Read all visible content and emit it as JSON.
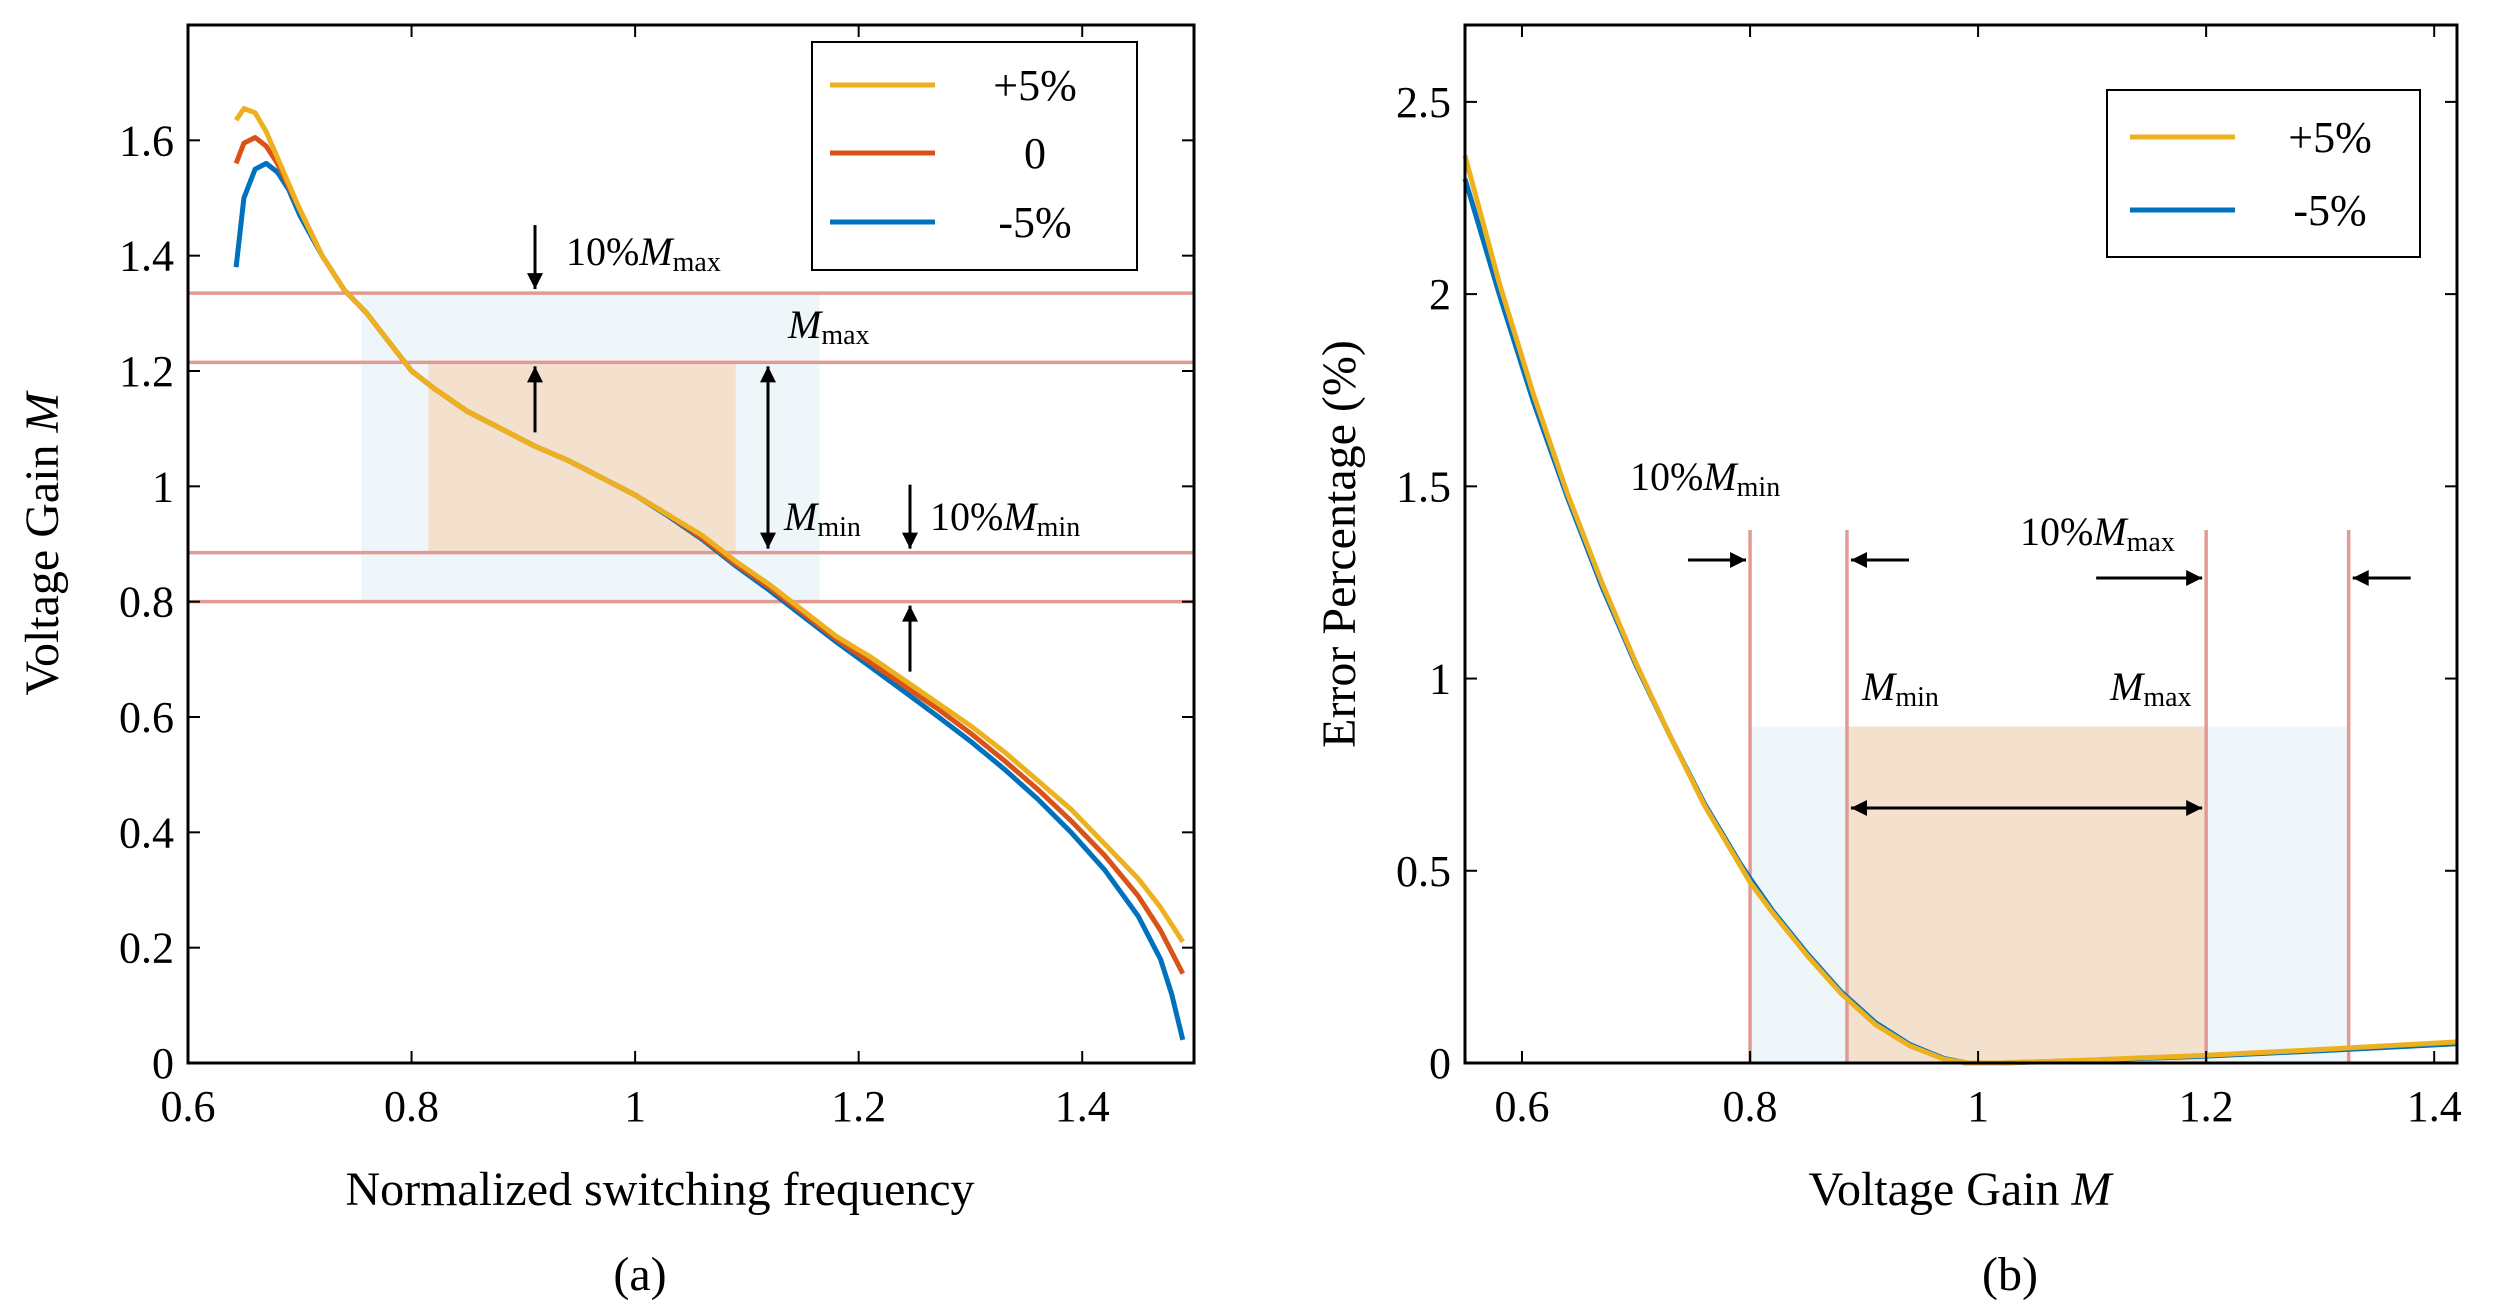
{
  "chart_data": [
    {
      "type": "line",
      "panel_label": "(a)",
      "xlabel": "Normalized switching frequency",
      "ylabel": "Voltage Gain M",
      "ylabel_main": "Voltage Gain ",
      "ylabel_italic": "M",
      "xlim": [
        0.6,
        1.5
      ],
      "ylim": [
        0,
        1.8
      ],
      "xticks": [
        0.6,
        0.8,
        1,
        1.2,
        1.4
      ],
      "xtick_labels": [
        "0.6",
        "0.8",
        "1",
        "1.2",
        "1.4"
      ],
      "yticks": [
        0,
        0.2,
        0.4,
        0.6,
        0.8,
        1,
        1.2,
        1.4,
        1.6
      ],
      "ytick_labels": [
        "0",
        "0.2",
        "0.4",
        "0.6",
        "0.8",
        "1",
        "1.2",
        "1.4",
        "1.6"
      ],
      "grid": false,
      "legend": "top-right",
      "series": [
        {
          "name": "+5%",
          "color": "#EDB120",
          "x": [
            0.643,
            0.65,
            0.66,
            0.67,
            0.68,
            0.7,
            0.72,
            0.74,
            0.76,
            0.78,
            0.8,
            0.82,
            0.85,
            0.88,
            0.91,
            0.94,
            0.97,
            1.0,
            1.03,
            1.06,
            1.09,
            1.12,
            1.15,
            1.18,
            1.21,
            1.24,
            1.27,
            1.3,
            1.33,
            1.36,
            1.39,
            1.42,
            1.45,
            1.47,
            1.49
          ],
          "y": [
            1.635,
            1.655,
            1.648,
            1.615,
            1.57,
            1.48,
            1.4,
            1.34,
            1.3,
            1.25,
            1.2,
            1.17,
            1.13,
            1.1,
            1.07,
            1.045,
            1.015,
            0.985,
            0.95,
            0.915,
            0.87,
            0.83,
            0.785,
            0.74,
            0.705,
            0.665,
            0.625,
            0.585,
            0.54,
            0.49,
            0.44,
            0.38,
            0.32,
            0.27,
            0.21
          ]
        },
        {
          "name": "0",
          "color": "#D95319",
          "x": [
            0.643,
            0.65,
            0.66,
            0.67,
            0.68,
            0.7,
            0.72,
            0.74,
            0.76,
            0.78,
            0.8,
            0.82,
            0.85,
            0.88,
            0.91,
            0.94,
            0.97,
            1.0,
            1.03,
            1.06,
            1.09,
            1.12,
            1.15,
            1.18,
            1.21,
            1.24,
            1.27,
            1.3,
            1.33,
            1.36,
            1.39,
            1.42,
            1.45,
            1.47,
            1.49
          ],
          "y": [
            1.56,
            1.595,
            1.605,
            1.59,
            1.56,
            1.48,
            1.4,
            1.34,
            1.3,
            1.25,
            1.2,
            1.17,
            1.13,
            1.1,
            1.07,
            1.045,
            1.015,
            0.985,
            0.95,
            0.91,
            0.865,
            0.825,
            0.78,
            0.735,
            0.695,
            0.655,
            0.615,
            0.572,
            0.525,
            0.475,
            0.42,
            0.36,
            0.29,
            0.23,
            0.155
          ]
        },
        {
          "name": "-5%",
          "color": "#0072BD",
          "x": [
            0.643,
            0.65,
            0.66,
            0.67,
            0.68,
            0.69,
            0.7,
            0.72,
            0.74,
            0.76,
            0.78,
            0.8,
            0.82,
            0.85,
            0.88,
            0.91,
            0.94,
            0.97,
            1.0,
            1.03,
            1.06,
            1.09,
            1.12,
            1.15,
            1.18,
            1.21,
            1.24,
            1.27,
            1.3,
            1.33,
            1.36,
            1.39,
            1.42,
            1.45,
            1.47,
            1.48,
            1.49
          ],
          "y": [
            1.38,
            1.5,
            1.55,
            1.56,
            1.545,
            1.515,
            1.47,
            1.4,
            1.34,
            1.3,
            1.25,
            1.2,
            1.17,
            1.13,
            1.1,
            1.07,
            1.045,
            1.015,
            0.985,
            0.948,
            0.908,
            0.862,
            0.82,
            0.775,
            0.73,
            0.688,
            0.645,
            0.602,
            0.558,
            0.51,
            0.458,
            0.4,
            0.335,
            0.255,
            0.18,
            0.12,
            0.04
          ]
        }
      ],
      "hlines": [
        1.335,
        1.215,
        0.885,
        0.8
      ],
      "shaded_regions": [
        {
          "name": "tolerance band",
          "x": [
            0.755,
            1.165
          ],
          "y": [
            0.8,
            1.335
          ],
          "color": "#EEF6FA"
        },
        {
          "name": "operating range",
          "x": [
            0.815,
            1.09
          ],
          "y": [
            0.885,
            1.215
          ],
          "color": "#F3E0CD"
        }
      ],
      "annotations": [
        {
          "base": "10%",
          "italic": "M",
          "sub": "max"
        },
        {
          "base": "",
          "italic": "M",
          "sub": "max"
        },
        {
          "base": "",
          "italic": "M",
          "sub": "min"
        },
        {
          "base": "10%",
          "italic": "M",
          "sub": "min"
        }
      ]
    },
    {
      "type": "line",
      "panel_label": "(b)",
      "xlabel": "Voltage Gain M",
      "xlabel_main": "Voltage Gain ",
      "xlabel_italic": "M",
      "ylabel": "Error Percentage (%)",
      "xlim": [
        0.55,
        1.42
      ],
      "ylim": [
        0,
        2.7
      ],
      "xticks": [
        0.6,
        0.8,
        1,
        1.2,
        1.4
      ],
      "xtick_labels": [
        "0.6",
        "0.8",
        "1",
        "1.2",
        "1.4"
      ],
      "yticks": [
        0,
        0.5,
        1,
        1.5,
        2,
        2.5
      ],
      "ytick_labels": [
        "0",
        "0.5",
        "1",
        "1.5",
        "2",
        "2.5"
      ],
      "grid": false,
      "legend": "top-right",
      "series": [
        {
          "name": "+5%",
          "color": "#EDB120",
          "x": [
            0.55,
            0.58,
            0.61,
            0.64,
            0.67,
            0.7,
            0.73,
            0.76,
            0.79,
            0.8,
            0.82,
            0.85,
            0.88,
            0.91,
            0.94,
            0.97,
            0.99,
            1.02,
            1.1,
            1.2,
            1.3,
            1.42
          ],
          "y": [
            2.36,
            2.03,
            1.74,
            1.48,
            1.25,
            1.04,
            0.85,
            0.67,
            0.52,
            0.47,
            0.39,
            0.28,
            0.18,
            0.1,
            0.045,
            0.01,
            0.0,
            0.0,
            0.008,
            0.02,
            0.035,
            0.055
          ]
        },
        {
          "name": "-5%",
          "color": "#0072BD",
          "x": [
            0.55,
            0.58,
            0.61,
            0.64,
            0.67,
            0.7,
            0.73,
            0.76,
            0.79,
            0.8,
            0.82,
            0.85,
            0.88,
            0.91,
            0.94,
            0.97,
            0.99,
            1.02,
            1.1,
            1.2,
            1.3,
            1.42
          ],
          "y": [
            2.3,
            2.0,
            1.72,
            1.47,
            1.24,
            1.035,
            0.85,
            0.675,
            0.525,
            0.48,
            0.395,
            0.285,
            0.185,
            0.105,
            0.048,
            0.012,
            0.0,
            0.0,
            0.007,
            0.018,
            0.032,
            0.05
          ]
        }
      ],
      "vlines": [
        0.8,
        0.885,
        1.2,
        1.325
      ],
      "shaded_regions": [
        {
          "name": "tolerance band",
          "x": [
            0.8,
            1.325
          ],
          "y": [
            0,
            0.875
          ],
          "color": "#EEF6FA"
        },
        {
          "name": "operating range",
          "x": [
            0.885,
            1.2
          ],
          "y": [
            0,
            0.875
          ],
          "color": "#F3E0CD"
        }
      ],
      "annotations": [
        {
          "base": "10%",
          "italic": "M",
          "sub": "min"
        },
        {
          "base": "10%",
          "italic": "M",
          "sub": "max"
        },
        {
          "base": "",
          "italic": "M",
          "sub": "min"
        },
        {
          "base": "",
          "italic": "M",
          "sub": "max"
        }
      ]
    }
  ]
}
